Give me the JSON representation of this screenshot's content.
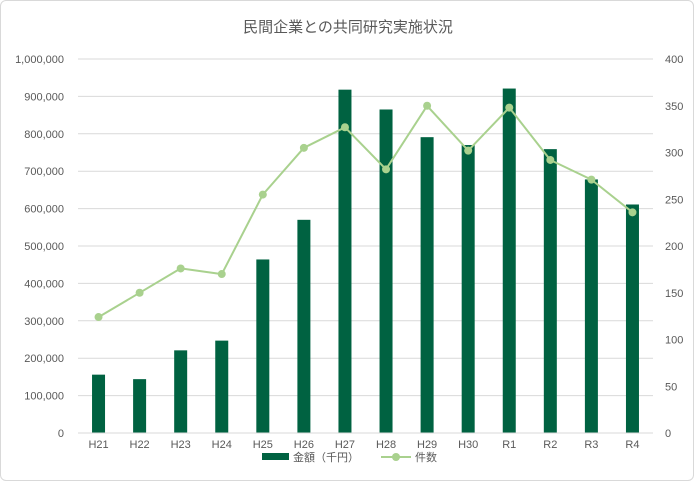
{
  "chart_data": {
    "type": "bar",
    "title": "民間企業との共同研究実施状況",
    "categories": [
      "H21",
      "H22",
      "H23",
      "H24",
      "H25",
      "H26",
      "H27",
      "H28",
      "H29",
      "H30",
      "R1",
      "R2",
      "R3",
      "R4"
    ],
    "series": [
      {
        "name": "金額（千円）",
        "type": "bar",
        "axis": "left",
        "color": "#006241",
        "values": [
          156000,
          144000,
          221000,
          247000,
          464000,
          570000,
          918000,
          865000,
          791000,
          770000,
          921000,
          759000,
          678000,
          611000
        ]
      },
      {
        "name": "件数",
        "type": "line",
        "axis": "right",
        "color": "#a9d18e",
        "values": [
          124,
          150,
          176,
          170,
          255,
          305,
          327,
          282,
          350,
          302,
          348,
          292,
          271,
          236
        ]
      }
    ],
    "y_left": {
      "min": 0,
      "max": 1000000,
      "ticks": [
        "0",
        "100,000",
        "200,000",
        "300,000",
        "400,000",
        "500,000",
        "600,000",
        "700,000",
        "800,000",
        "900,000",
        "1,000,000"
      ]
    },
    "y_right": {
      "min": 0,
      "max": 400,
      "ticks": [
        "0",
        "50",
        "100",
        "150",
        "200",
        "250",
        "300",
        "350",
        "400"
      ]
    },
    "grid": true,
    "legend_position": "bottom"
  }
}
